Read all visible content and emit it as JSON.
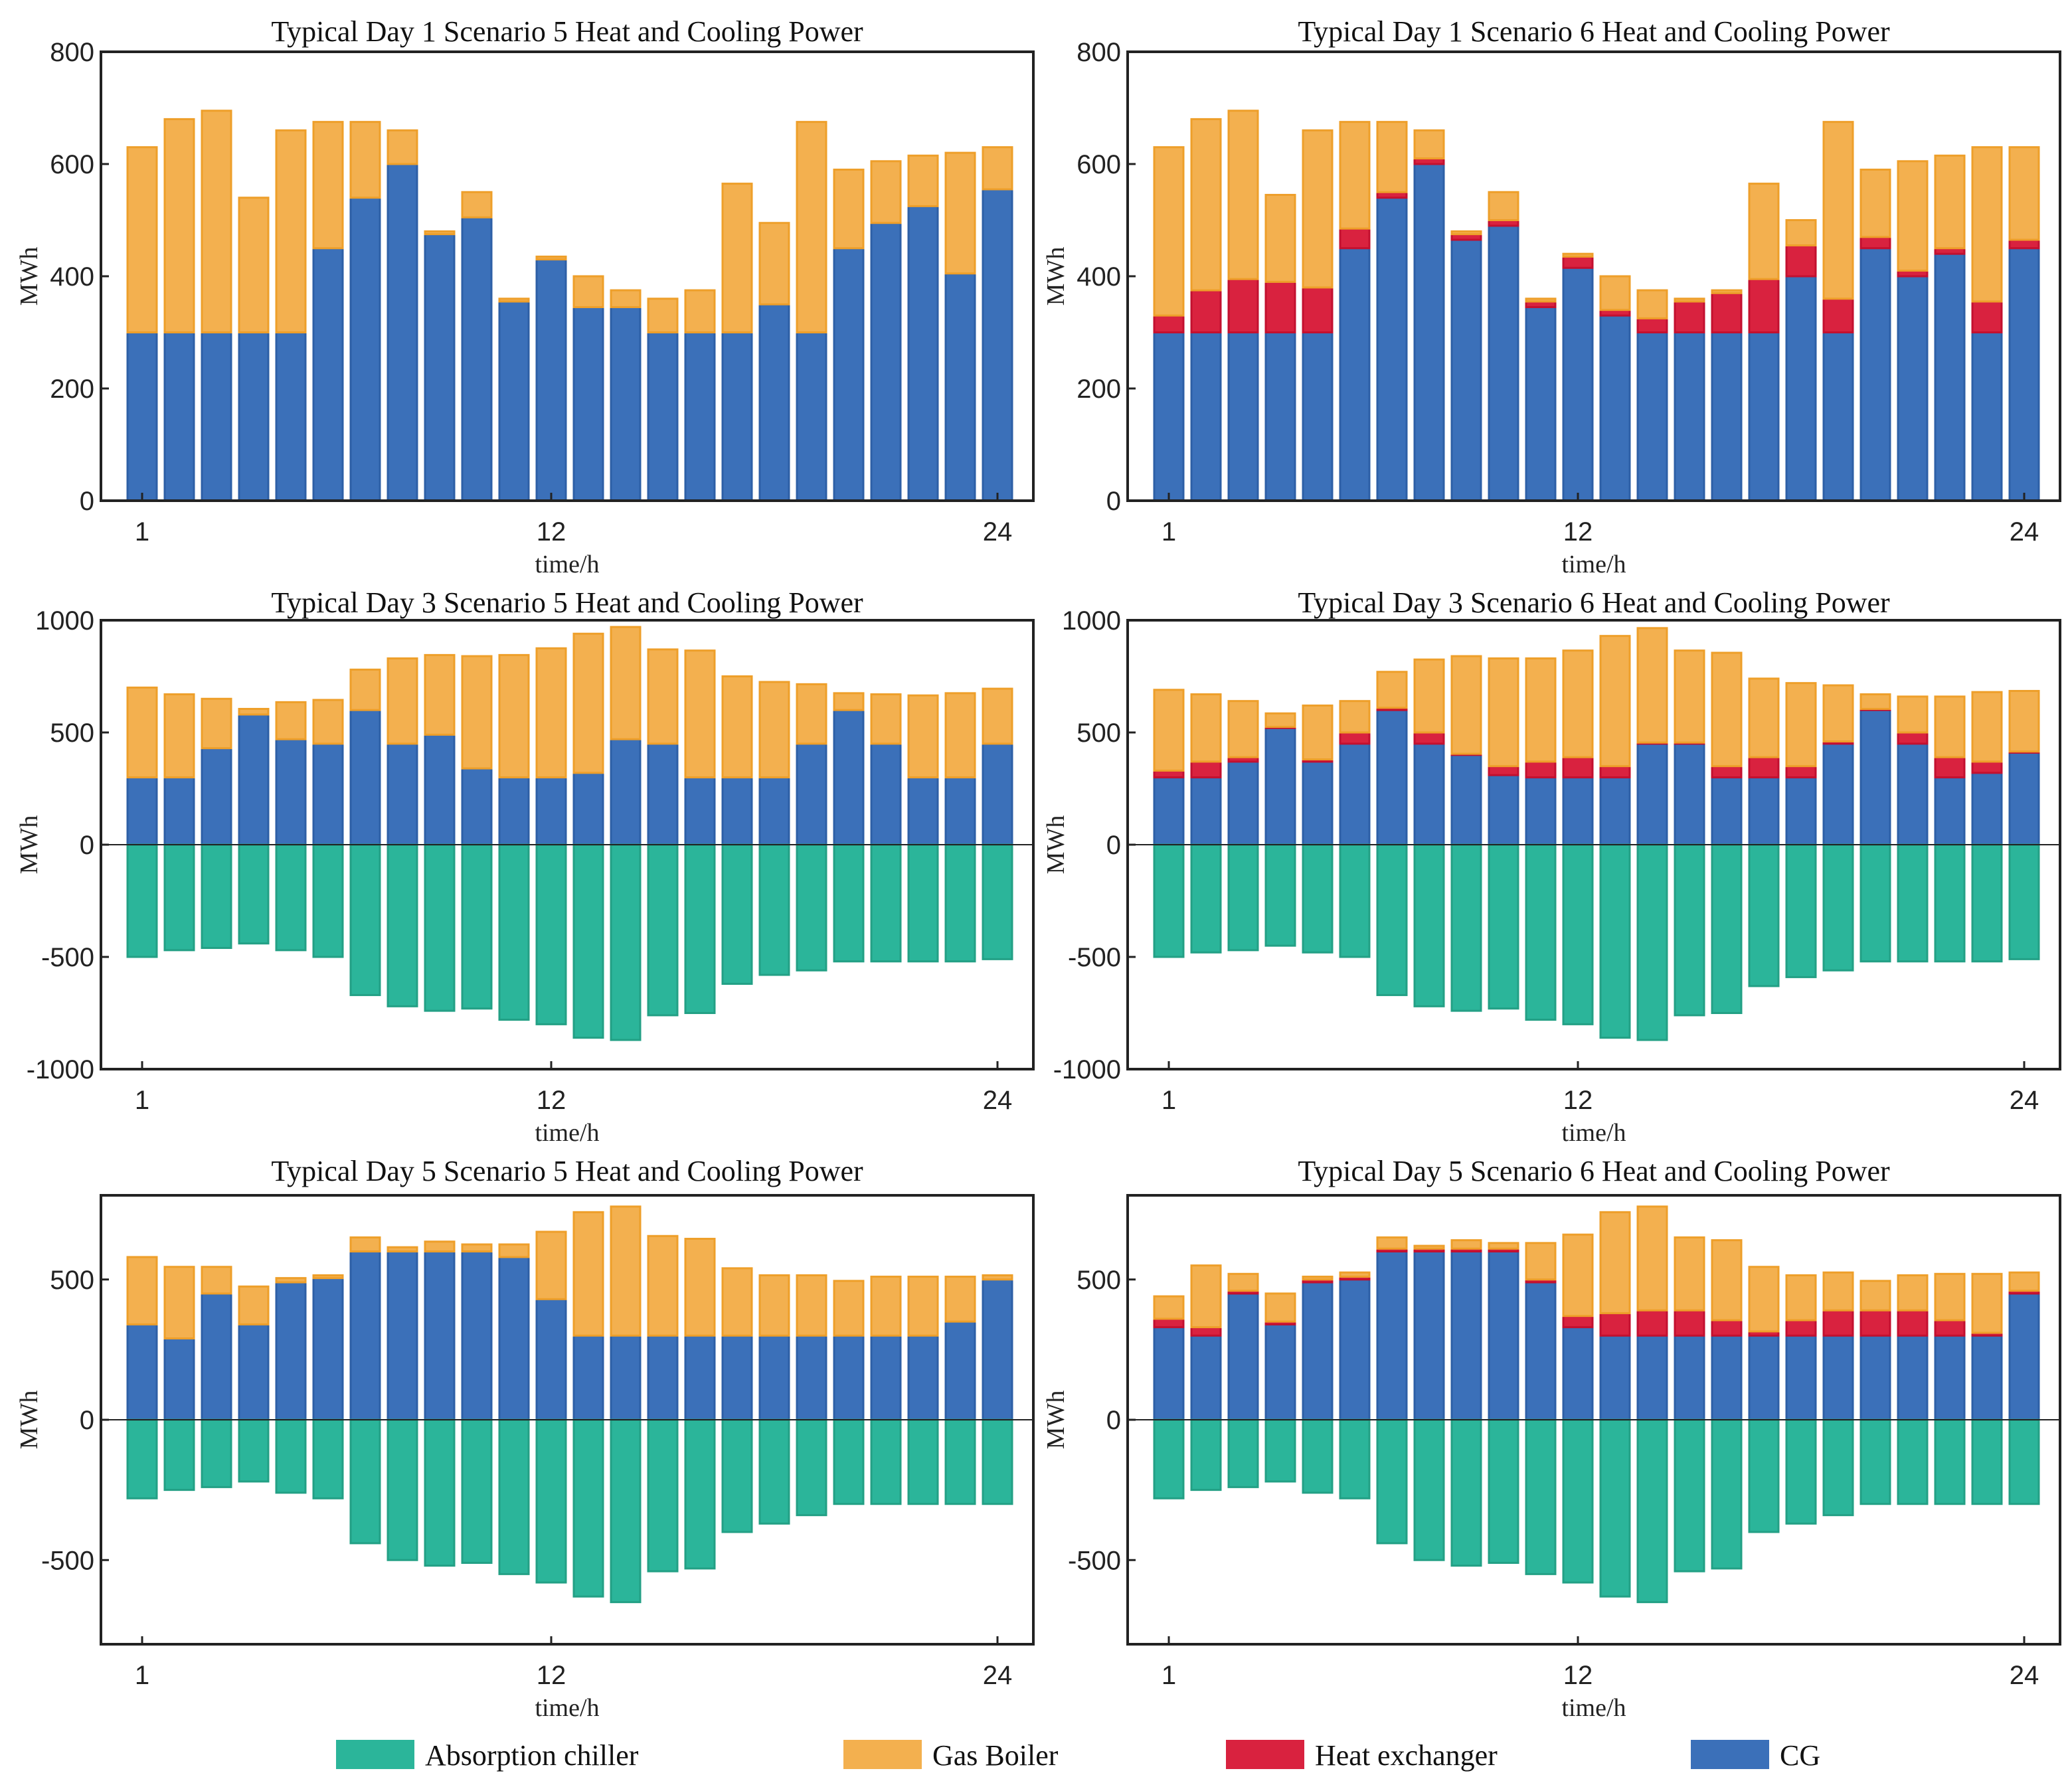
{
  "figure": {
    "colors": {
      "Absorption chiller": "#2bb59a",
      "Gas Boiler": "#f3b04f",
      "Heat exchanger": "#d9223f",
      "CG": "#3b70b9"
    },
    "legend": [
      {
        "label": "Absorption chiller",
        "color": "#2bb59a"
      },
      {
        "label": "Gas Boiler",
        "color": "#f3b04f"
      },
      {
        "label": "Heat exchanger",
        "color": "#d9223f"
      },
      {
        "label": "CG",
        "color": "#3b70b9"
      }
    ]
  },
  "chart_data": [
    {
      "type": "bar",
      "title": "Typical Day 1 Scenario 5 Heat and Cooling Power",
      "xlabel": "time/h",
      "ylabel": "MWh",
      "xticks": [
        "1",
        "12",
        "24"
      ],
      "ylim": [
        0,
        800
      ],
      "yticks": [
        0,
        200,
        400,
        600,
        800
      ],
      "ytick_labels": [
        "0",
        "200",
        "400",
        "600",
        "800"
      ],
      "categories": [
        1,
        2,
        3,
        4,
        5,
        6,
        7,
        8,
        9,
        10,
        11,
        12,
        13,
        14,
        15,
        16,
        17,
        18,
        19,
        20,
        21,
        22,
        23,
        24
      ],
      "series": [
        {
          "name": "CG",
          "values": [
            300,
            300,
            300,
            300,
            300,
            450,
            540,
            600,
            475,
            505,
            355,
            430,
            345,
            345,
            300,
            300,
            300,
            350,
            300,
            450,
            495,
            525,
            405,
            555
          ]
        },
        {
          "name": "Heat exchanger",
          "values": [
            0,
            0,
            0,
            0,
            0,
            0,
            0,
            0,
            0,
            0,
            0,
            0,
            0,
            0,
            0,
            0,
            0,
            0,
            0,
            0,
            0,
            0,
            0,
            0
          ]
        },
        {
          "name": "Gas Boiler",
          "values": [
            330,
            380,
            395,
            240,
            360,
            225,
            135,
            60,
            5,
            45,
            5,
            5,
            55,
            30,
            60,
            75,
            265,
            145,
            375,
            140,
            110,
            90,
            215,
            75
          ]
        },
        {
          "name": "Absorption chiller",
          "values": [
            0,
            0,
            0,
            0,
            0,
            0,
            0,
            0,
            0,
            0,
            0,
            0,
            0,
            0,
            0,
            0,
            0,
            0,
            0,
            0,
            0,
            0,
            0,
            0
          ]
        }
      ]
    },
    {
      "type": "bar",
      "title": "Typical Day 1 Scenario 6 Heat and Cooling Power",
      "xlabel": "time/h",
      "ylabel": "MWh",
      "xticks": [
        "1",
        "12",
        "24"
      ],
      "ylim": [
        0,
        800
      ],
      "yticks": [
        0,
        200,
        400,
        600,
        800
      ],
      "ytick_labels": [
        "0",
        "200",
        "400",
        "600",
        "800"
      ],
      "categories": [
        1,
        2,
        3,
        4,
        5,
        6,
        7,
        8,
        9,
        10,
        11,
        12,
        13,
        14,
        15,
        16,
        17,
        18,
        19,
        20,
        21,
        22,
        23,
        24
      ],
      "series": [
        {
          "name": "CG",
          "values": [
            300,
            300,
            300,
            300,
            300,
            450,
            540,
            600,
            465,
            490,
            345,
            415,
            330,
            300,
            300,
            300,
            300,
            400,
            300,
            450,
            400,
            440,
            300,
            450
          ]
        },
        {
          "name": "Heat exchanger",
          "values": [
            30,
            75,
            95,
            90,
            80,
            35,
            10,
            10,
            10,
            10,
            10,
            20,
            10,
            25,
            55,
            70,
            95,
            55,
            60,
            20,
            10,
            10,
            55,
            15
          ]
        },
        {
          "name": "Gas Boiler",
          "values": [
            300,
            305,
            300,
            155,
            280,
            190,
            125,
            50,
            5,
            50,
            5,
            5,
            60,
            50,
            5,
            5,
            170,
            45,
            315,
            120,
            195,
            165,
            275,
            165
          ]
        },
        {
          "name": "Absorption chiller",
          "values": [
            0,
            0,
            0,
            0,
            0,
            0,
            0,
            0,
            0,
            0,
            0,
            0,
            0,
            0,
            0,
            0,
            0,
            0,
            0,
            0,
            0,
            0,
            0,
            0
          ]
        }
      ]
    },
    {
      "type": "bar",
      "title": "Typical Day 3 Scenario 5 Heat and Cooling Power",
      "xlabel": "time/h",
      "ylabel": "MWh",
      "xticks": [
        "1",
        "12",
        "24"
      ],
      "ylim": [
        -1000,
        1000
      ],
      "yticks": [
        -1000,
        -500,
        0,
        500,
        1000
      ],
      "ytick_labels": [
        "-1000",
        "-500",
        "0",
        "500",
        "1000"
      ],
      "categories": [
        1,
        2,
        3,
        4,
        5,
        6,
        7,
        8,
        9,
        10,
        11,
        12,
        13,
        14,
        15,
        16,
        17,
        18,
        19,
        20,
        21,
        22,
        23,
        24
      ],
      "series": [
        {
          "name": "CG",
          "values": [
            300,
            300,
            430,
            580,
            470,
            450,
            600,
            450,
            490,
            340,
            300,
            300,
            320,
            470,
            450,
            300,
            300,
            300,
            450,
            600,
            450,
            300,
            300,
            450
          ]
        },
        {
          "name": "Heat exchanger",
          "values": [
            0,
            0,
            0,
            0,
            0,
            0,
            0,
            0,
            0,
            0,
            0,
            0,
            0,
            0,
            0,
            0,
            0,
            0,
            0,
            0,
            0,
            0,
            0,
            0
          ]
        },
        {
          "name": "Gas Boiler",
          "values": [
            400,
            370,
            220,
            25,
            165,
            195,
            180,
            380,
            355,
            500,
            545,
            575,
            620,
            500,
            420,
            565,
            450,
            425,
            265,
            75,
            220,
            365,
            375,
            245
          ]
        },
        {
          "name": "Absorption chiller",
          "values": [
            -500,
            -470,
            -460,
            -440,
            -470,
            -500,
            -670,
            -720,
            -740,
            -730,
            -780,
            -800,
            -860,
            -870,
            -760,
            -750,
            -620,
            -580,
            -560,
            -520,
            -520,
            -520,
            -520,
            -510
          ]
        }
      ]
    },
    {
      "type": "bar",
      "title": "Typical Day 3 Scenario 6 Heat and Cooling Power",
      "xlabel": "time/h",
      "ylabel": "MWh",
      "xticks": [
        "1",
        "12",
        "24"
      ],
      "ylim": [
        -1000,
        1000
      ],
      "yticks": [
        -1000,
        -500,
        0,
        500,
        1000
      ],
      "ytick_labels": [
        "-1000",
        "-500",
        "0",
        "500",
        "1000"
      ],
      "categories": [
        1,
        2,
        3,
        4,
        5,
        6,
        7,
        8,
        9,
        10,
        11,
        12,
        13,
        14,
        15,
        16,
        17,
        18,
        19,
        20,
        21,
        22,
        23,
        24
      ],
      "series": [
        {
          "name": "CG",
          "values": [
            300,
            300,
            370,
            520,
            370,
            450,
            600,
            450,
            400,
            310,
            300,
            300,
            300,
            450,
            450,
            300,
            300,
            300,
            450,
            600,
            450,
            300,
            320,
            410
          ]
        },
        {
          "name": "Heat exchanger",
          "values": [
            30,
            70,
            20,
            5,
            10,
            50,
            10,
            50,
            5,
            40,
            70,
            90,
            50,
            5,
            5,
            50,
            90,
            50,
            10,
            5,
            50,
            90,
            50,
            5
          ]
        },
        {
          "name": "Gas Boiler",
          "values": [
            360,
            300,
            250,
            60,
            240,
            140,
            160,
            325,
            435,
            480,
            460,
            475,
            580,
            510,
            410,
            505,
            350,
            370,
            250,
            65,
            160,
            270,
            310,
            270
          ]
        },
        {
          "name": "Absorption chiller",
          "values": [
            -500,
            -480,
            -470,
            -450,
            -480,
            -500,
            -670,
            -720,
            -740,
            -730,
            -780,
            -800,
            -860,
            -870,
            -760,
            -750,
            -630,
            -590,
            -560,
            -520,
            -520,
            -520,
            -520,
            -510
          ]
        }
      ]
    },
    {
      "type": "bar",
      "title": "Typical Day 5 Scenario 5 Heat and Cooling Power",
      "xlabel": "time/h",
      "ylabel": "MWh",
      "xticks": [
        "1",
        "12",
        "24"
      ],
      "ylim": [
        -800,
        800
      ],
      "yticks": [
        -500,
        0,
        500
      ],
      "ytick_labels": [
        "-500",
        "0",
        "500"
      ],
      "categories": [
        1,
        2,
        3,
        4,
        5,
        6,
        7,
        8,
        9,
        10,
        11,
        12,
        13,
        14,
        15,
        16,
        17,
        18,
        19,
        20,
        21,
        22,
        23,
        24
      ],
      "series": [
        {
          "name": "CG",
          "values": [
            340,
            290,
            450,
            340,
            490,
            505,
            600,
            600,
            600,
            600,
            580,
            430,
            300,
            300,
            300,
            300,
            300,
            300,
            300,
            300,
            300,
            300,
            350,
            500
          ]
        },
        {
          "name": "Heat exchanger",
          "values": [
            0,
            0,
            0,
            0,
            0,
            0,
            0,
            0,
            0,
            0,
            0,
            0,
            0,
            0,
            0,
            0,
            0,
            0,
            0,
            0,
            0,
            0,
            0,
            0
          ]
        },
        {
          "name": "Gas Boiler",
          "values": [
            240,
            255,
            95,
            135,
            15,
            10,
            50,
            15,
            35,
            25,
            45,
            240,
            440,
            460,
            355,
            345,
            240,
            215,
            215,
            195,
            210,
            210,
            160,
            15
          ]
        },
        {
          "name": "Absorption chiller",
          "values": [
            -280,
            -250,
            -240,
            -220,
            -260,
            -280,
            -440,
            -500,
            -520,
            -510,
            -550,
            -580,
            -630,
            -650,
            -540,
            -530,
            -400,
            -370,
            -340,
            -300,
            -300,
            -300,
            -300,
            -300
          ]
        }
      ]
    },
    {
      "type": "bar",
      "title": "Typical Day 5 Scenario 6 Heat and Cooling Power",
      "xlabel": "time/h",
      "ylabel": "MWh",
      "xticks": [
        "1",
        "12",
        "24"
      ],
      "ylim": [
        -800,
        800
      ],
      "yticks": [
        -500,
        0,
        500
      ],
      "ytick_labels": [
        "-500",
        "0",
        "500"
      ],
      "categories": [
        1,
        2,
        3,
        4,
        5,
        6,
        7,
        8,
        9,
        10,
        11,
        12,
        13,
        14,
        15,
        16,
        17,
        18,
        19,
        20,
        21,
        22,
        23,
        24
      ],
      "series": [
        {
          "name": "CG",
          "values": [
            330,
            300,
            450,
            340,
            490,
            500,
            600,
            600,
            600,
            600,
            490,
            330,
            300,
            300,
            300,
            300,
            300,
            300,
            300,
            300,
            300,
            300,
            300,
            450
          ]
        },
        {
          "name": "Heat exchanger",
          "values": [
            30,
            30,
            10,
            10,
            10,
            10,
            10,
            10,
            10,
            10,
            10,
            40,
            80,
            90,
            90,
            55,
            15,
            55,
            90,
            90,
            90,
            55,
            10,
            10
          ]
        },
        {
          "name": "Gas Boiler",
          "values": [
            80,
            220,
            60,
            100,
            10,
            15,
            40,
            10,
            30,
            20,
            130,
            290,
            360,
            370,
            260,
            285,
            230,
            160,
            135,
            105,
            125,
            165,
            210,
            65
          ]
        },
        {
          "name": "Absorption chiller",
          "values": [
            -280,
            -250,
            -240,
            -220,
            -260,
            -280,
            -440,
            -500,
            -520,
            -510,
            -550,
            -580,
            -630,
            -650,
            -540,
            -530,
            -400,
            -370,
            -340,
            -300,
            -300,
            -300,
            -300,
            -300
          ]
        }
      ]
    }
  ]
}
